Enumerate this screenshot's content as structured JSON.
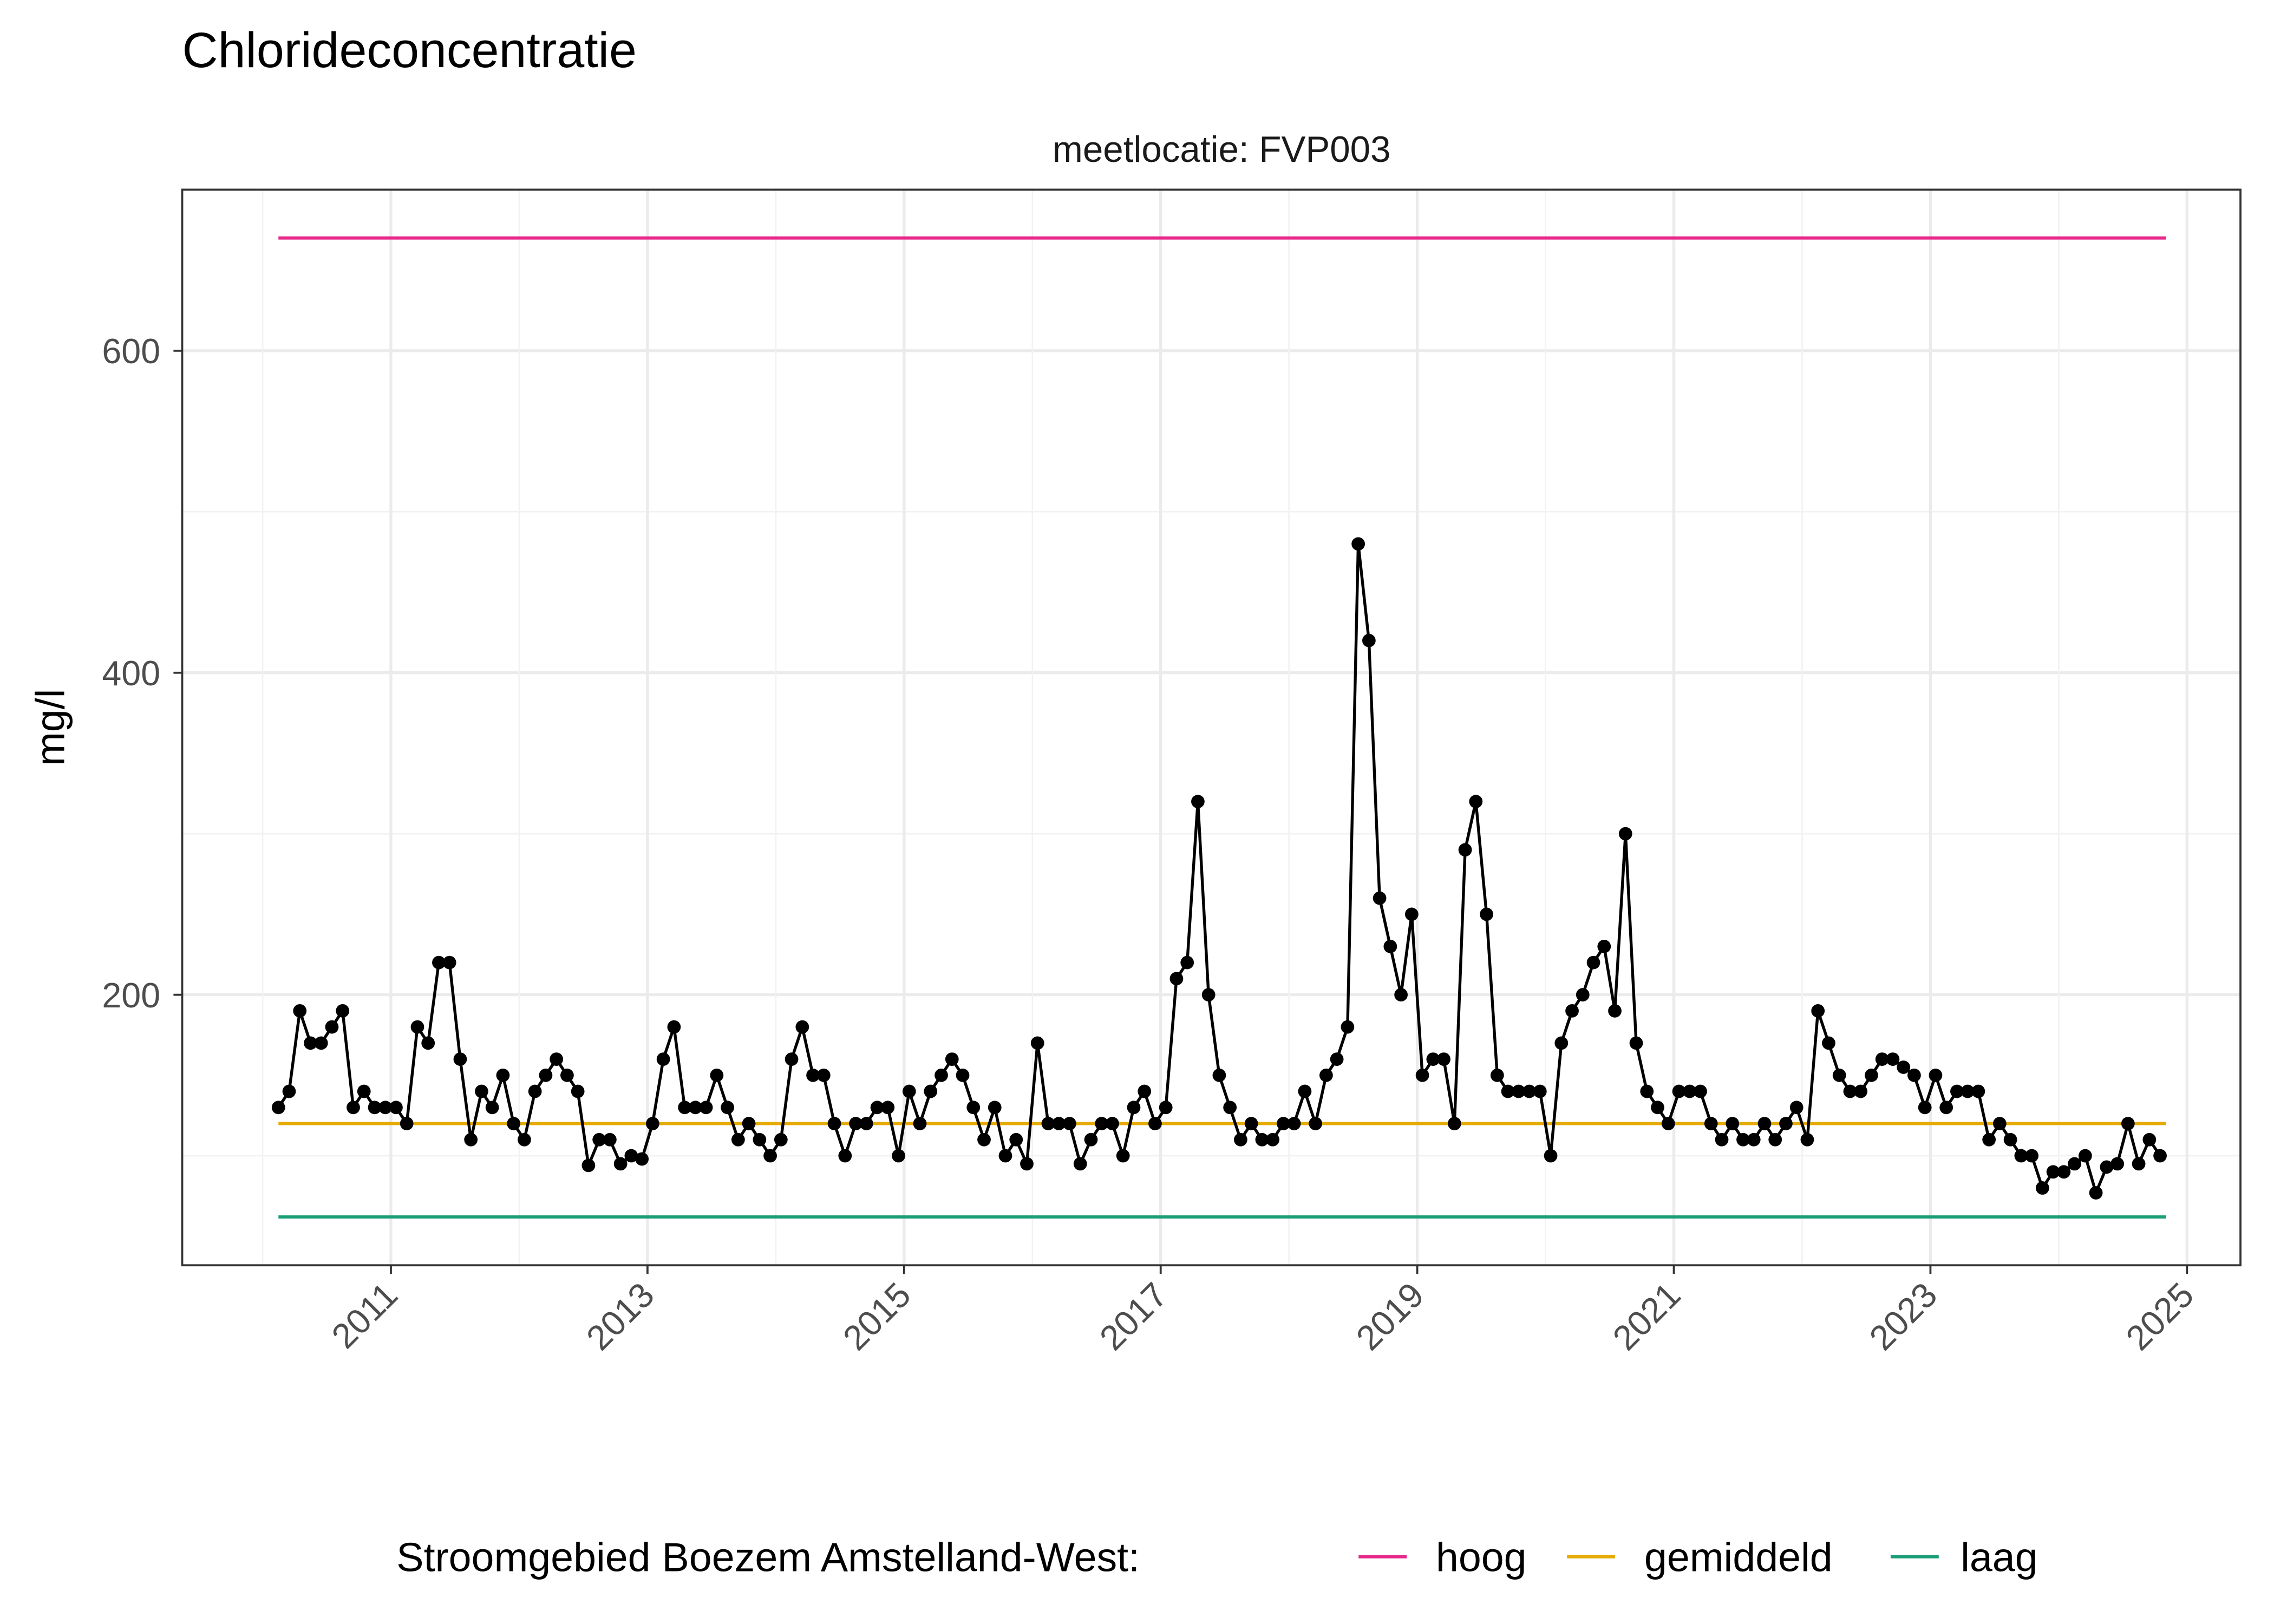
{
  "chart_data": {
    "type": "line",
    "title": "Chlorideconcentratie",
    "subtitle": "meetlocatie: FVP003",
    "xlabel": "",
    "ylabel": "mg/l",
    "ylim": [
      32,
      700
    ],
    "xlim": [
      "2009-05",
      "2025-06"
    ],
    "grid": true,
    "y_ticks": [
      "200",
      "400",
      "600"
    ],
    "y_tick_values": [
      200,
      400,
      600
    ],
    "x_ticks": [
      "2011",
      "2013",
      "2015",
      "2017",
      "2019",
      "2021",
      "2023",
      "2025"
    ],
    "legend": {
      "title": "Stroomgebied Boezem Amstelland-West:",
      "placement": "bottom",
      "entries": [
        {
          "name": "hoog",
          "color": "#E7298A"
        },
        {
          "name": "gemiddeld",
          "color": "#E6AB02"
        },
        {
          "name": "laag",
          "color": "#1B9E77"
        }
      ]
    },
    "reference_lines": [
      {
        "name": "hoog",
        "value": 670,
        "color": "#E7298A"
      },
      {
        "name": "gemiddeld",
        "value": 120,
        "color": "#E6AB02"
      },
      {
        "name": "laag",
        "value": 62,
        "color": "#1B9E77"
      }
    ],
    "series": [
      {
        "color": "#000000",
        "x": [
          "2010-02",
          "2010-03",
          "2010-04",
          "2010-05",
          "2010-06",
          "2010-07",
          "2010-08",
          "2010-09",
          "2010-10",
          "2010-11",
          "2010-12",
          "2011-01",
          "2011-02",
          "2011-03",
          "2011-04",
          "2011-05",
          "2011-06",
          "2011-07",
          "2011-08",
          "2011-09",
          "2011-10",
          "2011-11",
          "2011-12",
          "2012-01",
          "2012-02",
          "2012-03",
          "2012-04",
          "2012-05",
          "2012-06",
          "2012-07",
          "2012-08",
          "2012-09",
          "2012-10",
          "2012-11",
          "2012-12",
          "2013-01",
          "2013-02",
          "2013-03",
          "2013-04",
          "2013-05",
          "2013-06",
          "2013-07",
          "2013-08",
          "2013-09",
          "2013-10",
          "2013-11",
          "2013-12",
          "2014-01",
          "2014-02",
          "2014-03",
          "2014-04",
          "2014-05",
          "2014-06",
          "2014-07",
          "2014-08",
          "2014-09",
          "2014-10",
          "2014-11",
          "2014-12",
          "2015-01",
          "2015-02",
          "2015-03",
          "2015-04",
          "2015-05",
          "2015-06",
          "2015-07",
          "2015-08",
          "2015-09",
          "2015-10",
          "2015-11",
          "2015-12",
          "2016-01",
          "2016-02",
          "2016-03",
          "2016-04",
          "2016-05",
          "2016-06",
          "2016-07",
          "2016-08",
          "2016-09",
          "2016-10",
          "2016-11",
          "2016-12",
          "2017-01",
          "2017-02",
          "2017-03",
          "2017-04",
          "2017-05",
          "2017-06",
          "2017-07",
          "2017-08",
          "2017-09",
          "2017-10",
          "2017-11",
          "2017-12",
          "2018-01",
          "2018-02",
          "2018-03",
          "2018-04",
          "2018-05",
          "2018-06",
          "2018-07",
          "2018-08",
          "2018-09",
          "2018-10",
          "2018-11",
          "2018-12",
          "2019-01",
          "2019-02",
          "2019-03",
          "2019-04",
          "2019-05",
          "2019-06",
          "2019-07",
          "2019-08",
          "2019-09",
          "2019-10",
          "2019-11",
          "2019-12",
          "2020-01",
          "2020-02",
          "2020-03",
          "2020-04",
          "2020-05",
          "2020-06",
          "2020-07",
          "2020-08",
          "2020-09",
          "2020-10",
          "2020-11",
          "2020-12",
          "2021-01",
          "2021-02",
          "2021-03",
          "2021-04",
          "2021-05",
          "2021-06",
          "2021-07",
          "2021-08",
          "2021-09",
          "2021-10",
          "2021-11",
          "2021-12",
          "2022-01",
          "2022-02",
          "2022-03",
          "2022-04",
          "2022-05",
          "2022-06",
          "2022-07",
          "2022-08",
          "2022-09",
          "2022-10",
          "2022-11",
          "2022-12",
          "2023-01",
          "2023-02",
          "2023-03",
          "2023-04",
          "2023-05",
          "2023-06",
          "2023-07",
          "2023-08",
          "2023-09",
          "2023-10",
          "2023-11",
          "2023-12",
          "2024-01",
          "2024-02",
          "2024-03",
          "2024-04",
          "2024-05",
          "2024-06",
          "2024-07",
          "2024-08",
          "2024-09",
          "2024-10"
        ],
        "values": [
          130,
          140,
          190,
          170,
          170,
          180,
          190,
          130,
          140,
          130,
          130,
          130,
          120,
          180,
          170,
          220,
          220,
          160,
          110,
          140,
          130,
          150,
          120,
          110,
          140,
          150,
          160,
          150,
          140,
          94,
          110,
          110,
          95,
          100,
          98,
          120,
          160,
          180,
          130,
          130,
          130,
          150,
          130,
          110,
          120,
          110,
          100,
          110,
          160,
          180,
          150,
          150,
          120,
          100,
          120,
          120,
          130,
          130,
          100,
          140,
          120,
          140,
          150,
          160,
          150,
          130,
          110,
          130,
          100,
          110,
          95,
          170,
          120,
          120,
          120,
          95,
          110,
          120,
          120,
          100,
          130,
          140,
          120,
          130,
          210,
          220,
          320,
          200,
          150,
          130,
          110,
          120,
          110,
          110,
          120,
          120,
          140,
          120,
          150,
          160,
          180,
          480,
          420,
          260,
          230,
          200,
          250,
          150,
          160,
          160,
          120,
          290,
          320,
          250,
          150,
          140,
          140,
          140,
          140,
          100,
          170,
          190,
          200,
          220,
          230,
          190,
          300,
          170,
          140,
          130,
          120,
          140,
          140,
          140,
          120,
          110,
          120,
          110,
          110,
          120,
          110,
          120,
          130,
          110,
          190,
          170,
          150,
          140,
          140,
          150,
          160,
          160,
          155,
          150,
          130,
          150,
          130,
          140,
          140,
          140,
          110,
          120,
          110,
          100,
          100,
          80,
          90,
          90,
          95,
          100,
          77,
          93,
          95,
          120,
          95,
          110,
          100
        ]
      }
    ]
  }
}
